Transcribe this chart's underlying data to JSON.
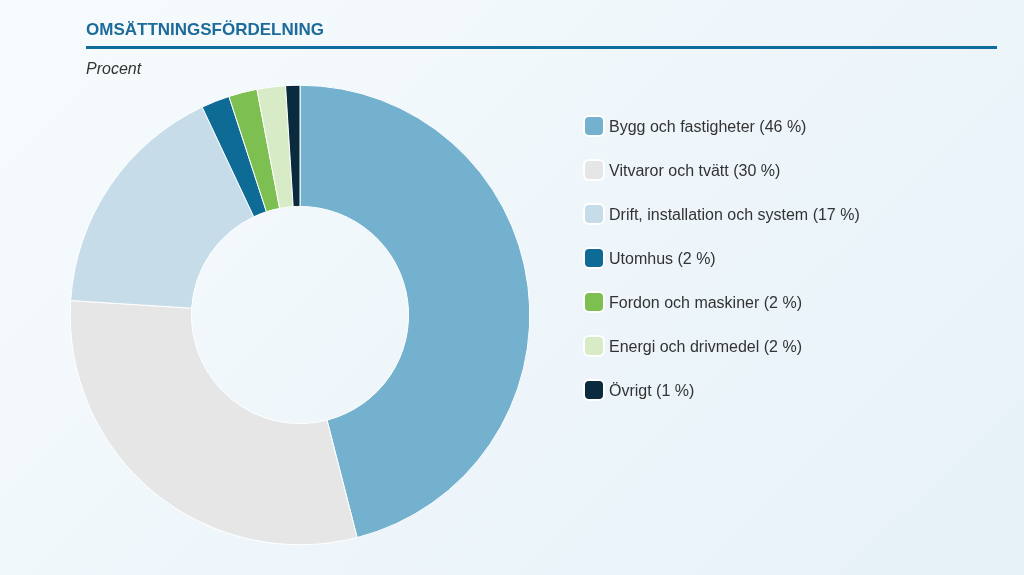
{
  "chart_data": {
    "type": "donut",
    "title": "OMSÄTTNINGSFÖRDELNING",
    "subtitle": "Procent",
    "categories": [
      "Bygg och fastigheter (46 %)",
      "Vitvaror och tvätt (30 %)",
      "Drift, installation och system (17 %)",
      "Utomhus (2 %)",
      "Fordon och maskiner (2 %)",
      "Energi och drivmedel (2 %)",
      "Övrigt (1 %)"
    ],
    "values": [
      46,
      30,
      17,
      2,
      2,
      2,
      1
    ],
    "colors": [
      "#73b1cf",
      "#e6e6e6",
      "#c6dde9",
      "#0e6b96",
      "#7dbf50",
      "#d7ebc6",
      "#0a2a3d"
    ],
    "legend": "right"
  }
}
